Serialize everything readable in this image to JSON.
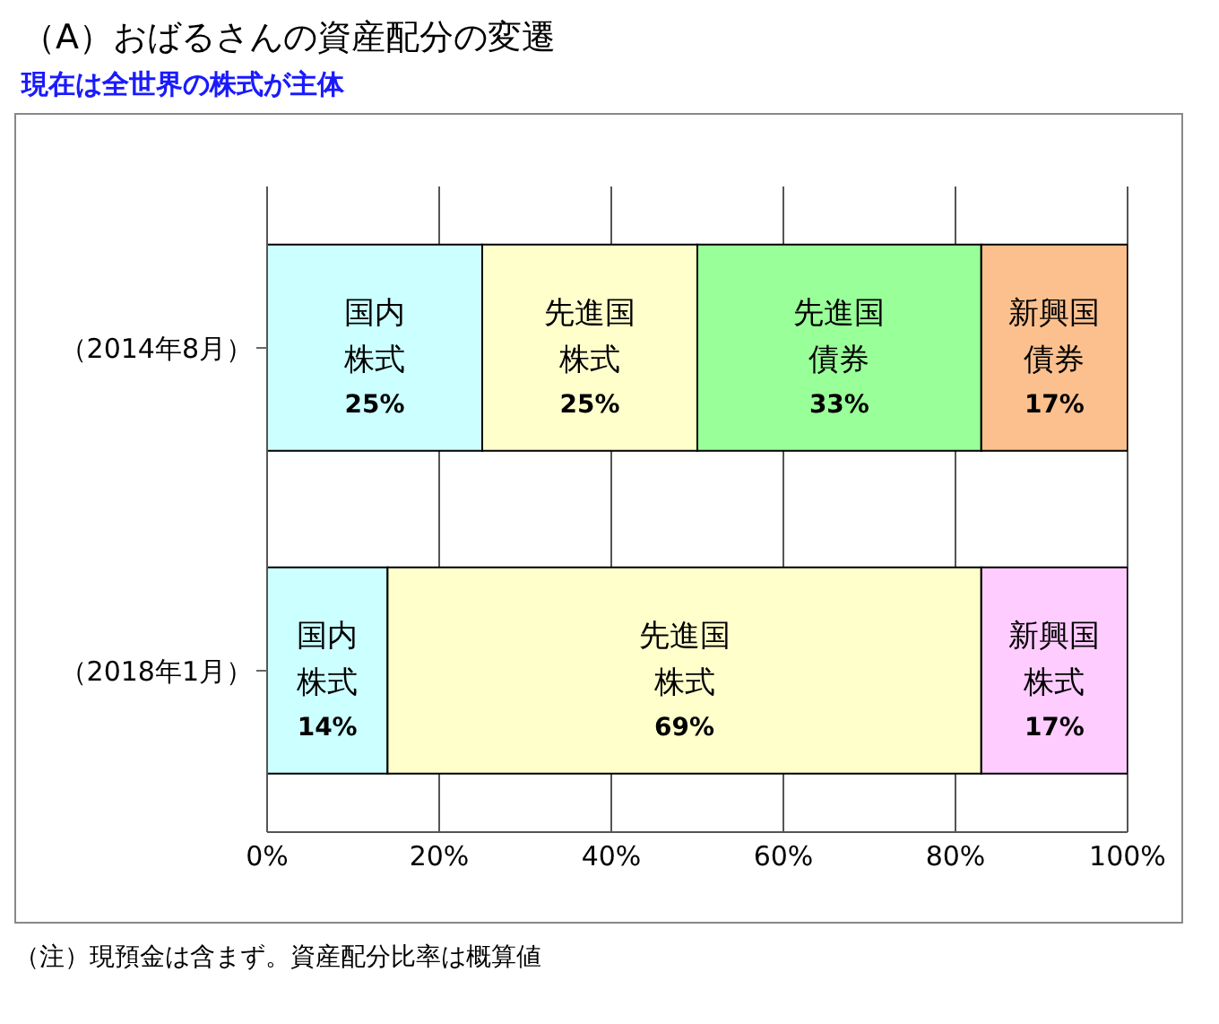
{
  "chart_data": {
    "type": "bar",
    "orientation": "horizontal",
    "stacked": true,
    "title": "（A）おばるさんの資産配分の変遷",
    "subtitle": "現在は全世界の株式が主体",
    "categories": [
      "（2014年8月）",
      "（2018年1月）"
    ],
    "series": [
      {
        "name": "国内株式",
        "color": "#ccffff",
        "values": [
          25,
          14
        ],
        "value_labels": [
          "25%",
          "14%"
        ]
      },
      {
        "name": "先進国株式",
        "color": "#ffffcc",
        "values": [
          25,
          69
        ],
        "value_labels": [
          "25%",
          "69%"
        ]
      },
      {
        "name": "先進国債券",
        "color": "#99ff99",
        "values": [
          33,
          null
        ],
        "value_labels": [
          "33%",
          null
        ]
      },
      {
        "name": "新興国債券",
        "color": "#fcc08e",
        "values": [
          17,
          null
        ],
        "value_labels": [
          "17%",
          null
        ]
      },
      {
        "name": "新興国株式",
        "color": "#ffccff",
        "values": [
          null,
          17
        ],
        "value_labels": [
          null,
          "17%"
        ]
      }
    ],
    "xlim": [
      0,
      100
    ],
    "xticks": [
      {
        "value": 0,
        "label": "0%"
      },
      {
        "value": 20,
        "label": "20%"
      },
      {
        "value": 40,
        "label": "40%"
      },
      {
        "value": 60,
        "label": "60%"
      },
      {
        "value": 80,
        "label": "80%"
      },
      {
        "value": 100,
        "label": "100%"
      }
    ],
    "grid": "x",
    "legend": false,
    "annotations": [
      "（注）現預金は含まず。資産配分比率は概算値"
    ]
  }
}
